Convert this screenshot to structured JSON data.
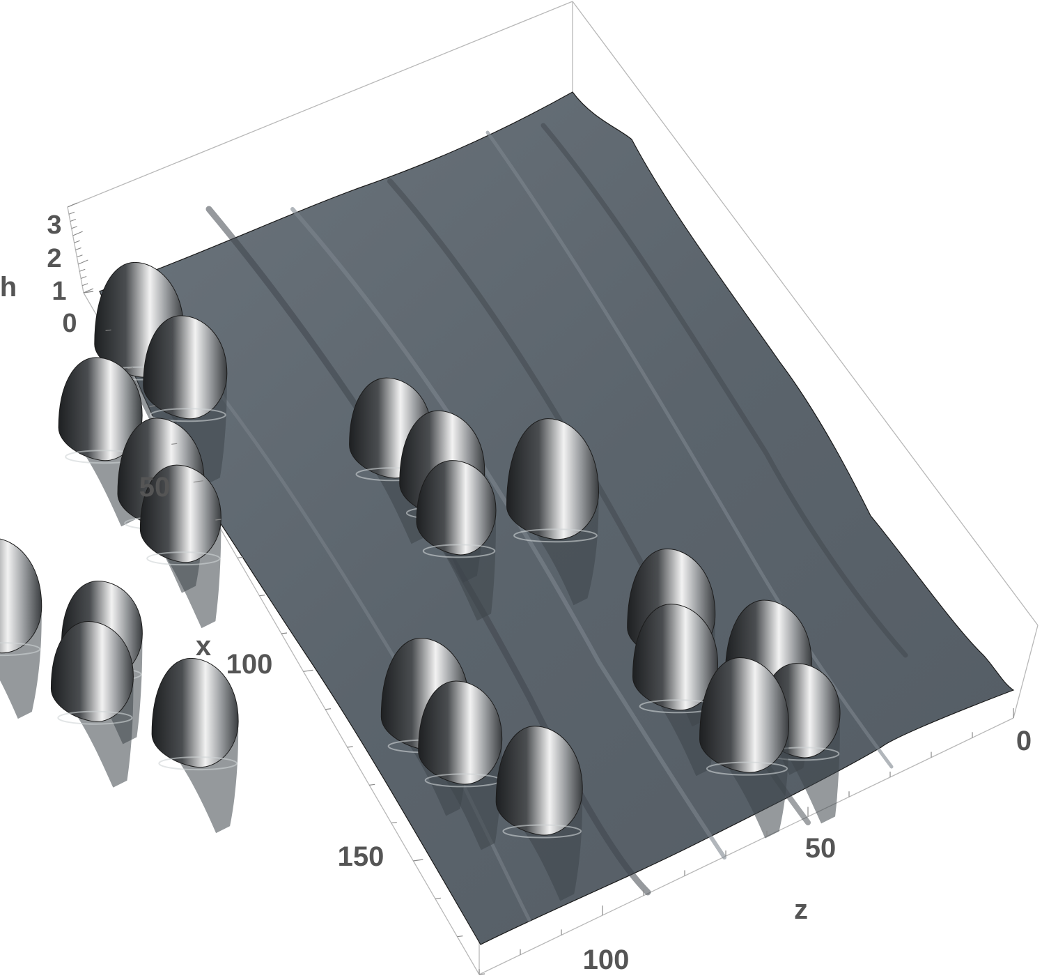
{
  "chart_data": {
    "type": "surface3d",
    "title": "",
    "xlabel": "x",
    "ylabel": "z",
    "zlabel": "h",
    "x_ticks": [
      {
        "value": 50,
        "label": "50"
      },
      {
        "value": 100,
        "label": "100"
      },
      {
        "value": 150,
        "label": "150"
      }
    ],
    "z_ticks": [
      {
        "value": 0,
        "label": "0"
      },
      {
        "value": 50,
        "label": "50"
      },
      {
        "value": 100,
        "label": "100"
      }
    ],
    "h_ticks": [
      {
        "value": 0,
        "label": "0"
      },
      {
        "value": 1,
        "label": "1"
      },
      {
        "value": 2,
        "label": "2"
      },
      {
        "value": 3,
        "label": "3"
      }
    ],
    "x_range": [
      0,
      180
    ],
    "z_range": [
      0,
      130
    ],
    "h_range": [
      0,
      3.3
    ],
    "surface_color": "#5b646c",
    "highlight_color": "#f2f2f2",
    "shadow_color": "#2a2c2e",
    "box_color": "#b8b8b8",
    "peaks": [
      {
        "x": 12,
        "z": 120,
        "h": 2.6
      },
      {
        "x": 20,
        "z": 110,
        "h": 2.2
      },
      {
        "x": 8,
        "z": 85,
        "h": 2.1
      },
      {
        "x": 14,
        "z": 75,
        "h": 2.3
      },
      {
        "x": 4,
        "z": 63,
        "h": 2.8
      },
      {
        "x": 26,
        "z": 68,
        "h": 1.9
      },
      {
        "x": 30,
        "z": 35,
        "h": 2.5
      },
      {
        "x": 32,
        "z": 20,
        "h": 2.4
      },
      {
        "x": 50,
        "z": 110,
        "h": 2.2
      },
      {
        "x": 65,
        "z": 95,
        "h": 2.4
      },
      {
        "x": 75,
        "z": 88,
        "h": 2.0
      },
      {
        "x": 48,
        "z": 27,
        "h": 2.3
      },
      {
        "x": 60,
        "z": 12,
        "h": 2.6
      },
      {
        "x": 45,
        "z": 10,
        "h": 1.9
      },
      {
        "x": 105,
        "z": 40,
        "h": 2.5
      },
      {
        "x": 112,
        "z": 32,
        "h": 2.2
      },
      {
        "x": 118,
        "z": 18,
        "h": 2.4
      },
      {
        "x": 135,
        "z": 110,
        "h": 2.3
      },
      {
        "x": 140,
        "z": 88,
        "h": 2.6
      },
      {
        "x": 150,
        "z": 70,
        "h": 2.1
      },
      {
        "x": 150,
        "z": 55,
        "h": 2.4
      },
      {
        "x": 132,
        "z": 76,
        "h": 2.0
      }
    ]
  }
}
